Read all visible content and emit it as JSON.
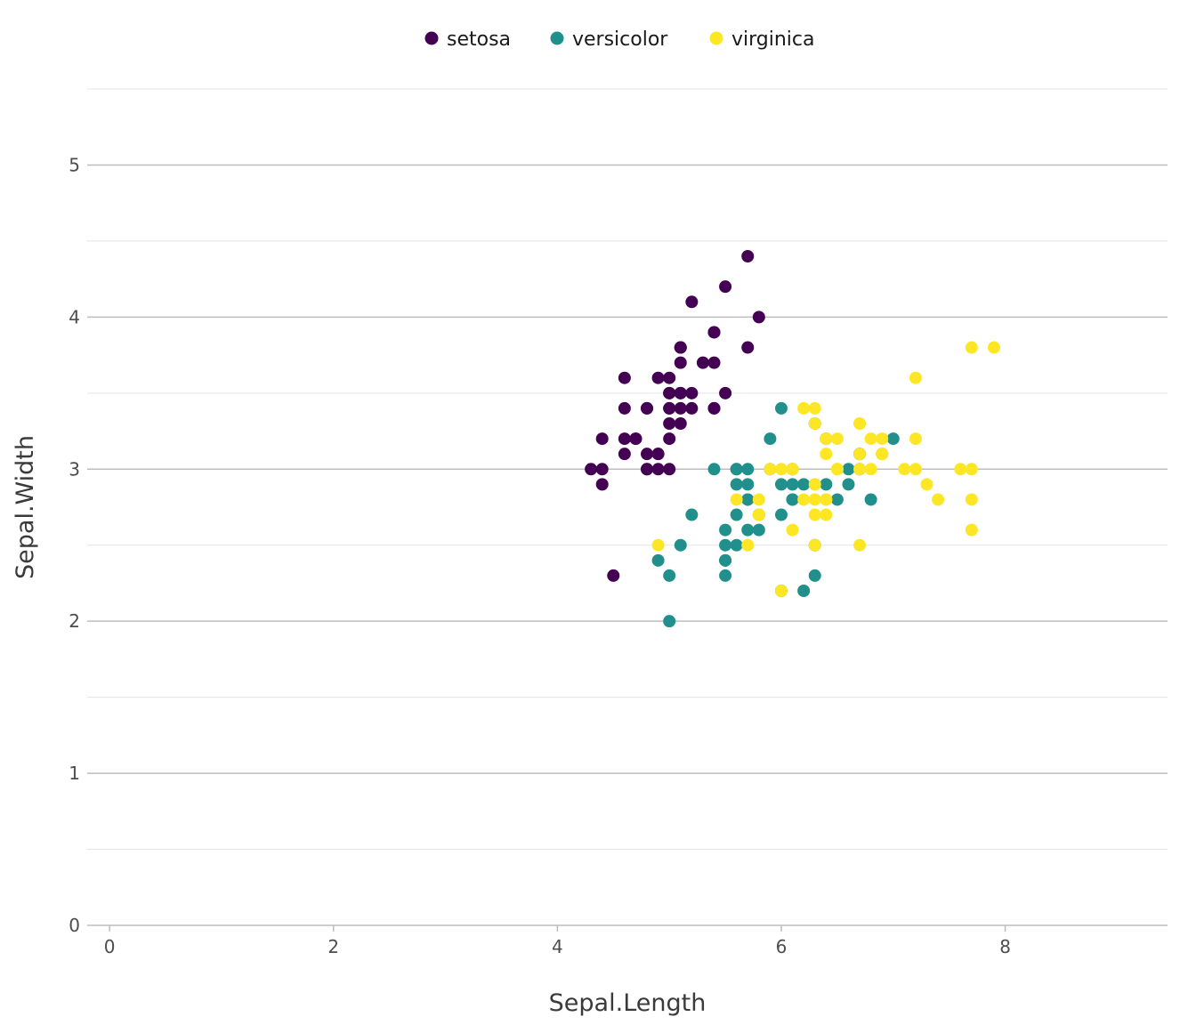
{
  "chart_data": {
    "type": "scatter",
    "title": "",
    "xlabel": "Sepal.Length",
    "ylabel": "Sepal.Width",
    "xlim": [
      -0.2,
      9.45
    ],
    "ylim": [
      0,
      5.5
    ],
    "x_ticks": [
      0,
      2,
      4,
      6,
      8
    ],
    "y_ticks": [
      0,
      1,
      2,
      3,
      4,
      5
    ],
    "x_tick_labels": [
      "0",
      "2",
      "4",
      "6",
      "8"
    ],
    "y_tick_labels": [
      "0",
      "1",
      "2",
      "3",
      "4",
      "5"
    ],
    "grid": true,
    "legend_position": "top",
    "series": [
      {
        "name": "setosa",
        "color": "#440154",
        "points": [
          [
            5.1,
            3.5
          ],
          [
            4.9,
            3.0
          ],
          [
            4.7,
            3.2
          ],
          [
            4.6,
            3.1
          ],
          [
            5.0,
            3.6
          ],
          [
            5.4,
            3.9
          ],
          [
            4.6,
            3.4
          ],
          [
            5.0,
            3.4
          ],
          [
            4.4,
            2.9
          ],
          [
            4.9,
            3.1
          ],
          [
            5.4,
            3.7
          ],
          [
            4.8,
            3.4
          ],
          [
            4.8,
            3.0
          ],
          [
            4.3,
            3.0
          ],
          [
            5.8,
            4.0
          ],
          [
            5.7,
            4.4
          ],
          [
            5.4,
            3.9
          ],
          [
            5.1,
            3.5
          ],
          [
            5.7,
            3.8
          ],
          [
            5.1,
            3.8
          ],
          [
            5.4,
            3.4
          ],
          [
            5.1,
            3.7
          ],
          [
            4.6,
            3.6
          ],
          [
            5.1,
            3.3
          ],
          [
            4.8,
            3.4
          ],
          [
            5.0,
            3.0
          ],
          [
            5.0,
            3.4
          ],
          [
            5.2,
            3.5
          ],
          [
            5.2,
            3.4
          ],
          [
            4.7,
            3.2
          ],
          [
            4.8,
            3.1
          ],
          [
            5.4,
            3.4
          ],
          [
            5.2,
            4.1
          ],
          [
            5.5,
            4.2
          ],
          [
            4.9,
            3.1
          ],
          [
            5.0,
            3.2
          ],
          [
            5.5,
            3.5
          ],
          [
            4.9,
            3.6
          ],
          [
            4.4,
            3.0
          ],
          [
            5.1,
            3.4
          ],
          [
            5.0,
            3.5
          ],
          [
            4.5,
            2.3
          ],
          [
            4.4,
            3.2
          ],
          [
            5.0,
            3.5
          ],
          [
            5.1,
            3.8
          ],
          [
            4.8,
            3.0
          ],
          [
            5.1,
            3.8
          ],
          [
            4.6,
            3.2
          ],
          [
            5.3,
            3.7
          ],
          [
            5.0,
            3.3
          ]
        ]
      },
      {
        "name": "versicolor",
        "color": "#21908C",
        "points": [
          [
            7.0,
            3.2
          ],
          [
            6.4,
            3.2
          ],
          [
            6.9,
            3.1
          ],
          [
            5.5,
            2.3
          ],
          [
            6.5,
            2.8
          ],
          [
            5.7,
            2.8
          ],
          [
            6.3,
            3.3
          ],
          [
            4.9,
            2.4
          ],
          [
            6.6,
            2.9
          ],
          [
            5.2,
            2.7
          ],
          [
            5.0,
            2.0
          ],
          [
            5.9,
            3.0
          ],
          [
            6.0,
            2.2
          ],
          [
            6.1,
            2.9
          ],
          [
            5.6,
            2.9
          ],
          [
            6.7,
            3.1
          ],
          [
            5.6,
            3.0
          ],
          [
            5.8,
            2.7
          ],
          [
            6.2,
            2.2
          ],
          [
            5.6,
            2.5
          ],
          [
            5.9,
            3.2
          ],
          [
            6.1,
            2.8
          ],
          [
            6.3,
            2.5
          ],
          [
            6.1,
            2.8
          ],
          [
            6.4,
            2.9
          ],
          [
            6.6,
            3.0
          ],
          [
            6.8,
            2.8
          ],
          [
            6.7,
            3.0
          ],
          [
            6.0,
            2.9
          ],
          [
            5.7,
            2.6
          ],
          [
            5.5,
            2.4
          ],
          [
            5.5,
            2.4
          ],
          [
            5.8,
            2.7
          ],
          [
            6.0,
            2.7
          ],
          [
            5.4,
            3.0
          ],
          [
            6.0,
            3.4
          ],
          [
            6.7,
            3.1
          ],
          [
            6.3,
            2.3
          ],
          [
            5.6,
            3.0
          ],
          [
            5.5,
            2.5
          ],
          [
            5.5,
            2.6
          ],
          [
            6.1,
            3.0
          ],
          [
            5.8,
            2.6
          ],
          [
            5.0,
            2.3
          ],
          [
            5.6,
            2.7
          ],
          [
            5.7,
            3.0
          ],
          [
            5.7,
            2.9
          ],
          [
            6.2,
            2.9
          ],
          [
            5.1,
            2.5
          ],
          [
            5.7,
            2.8
          ]
        ]
      },
      {
        "name": "virginica",
        "color": "#FDE725",
        "points": [
          [
            6.3,
            3.3
          ],
          [
            5.8,
            2.7
          ],
          [
            7.1,
            3.0
          ],
          [
            6.3,
            2.9
          ],
          [
            6.5,
            3.0
          ],
          [
            7.6,
            3.0
          ],
          [
            4.9,
            2.5
          ],
          [
            7.3,
            2.9
          ],
          [
            6.7,
            2.5
          ],
          [
            7.2,
            3.6
          ],
          [
            6.5,
            3.2
          ],
          [
            6.4,
            2.7
          ],
          [
            6.8,
            3.0
          ],
          [
            5.7,
            2.5
          ],
          [
            5.8,
            2.8
          ],
          [
            6.4,
            3.2
          ],
          [
            6.5,
            3.0
          ],
          [
            7.7,
            3.8
          ],
          [
            7.7,
            2.6
          ],
          [
            6.0,
            2.2
          ],
          [
            6.9,
            3.2
          ],
          [
            5.6,
            2.8
          ],
          [
            7.7,
            2.8
          ],
          [
            6.3,
            2.7
          ],
          [
            6.7,
            3.3
          ],
          [
            7.2,
            3.2
          ],
          [
            6.2,
            2.8
          ],
          [
            6.1,
            3.0
          ],
          [
            6.4,
            2.8
          ],
          [
            7.2,
            3.0
          ],
          [
            7.4,
            2.8
          ],
          [
            7.9,
            3.8
          ],
          [
            6.4,
            2.8
          ],
          [
            6.3,
            2.8
          ],
          [
            6.1,
            2.6
          ],
          [
            7.7,
            3.0
          ],
          [
            6.3,
            3.4
          ],
          [
            6.4,
            3.1
          ],
          [
            6.0,
            3.0
          ],
          [
            6.9,
            3.1
          ],
          [
            6.7,
            3.1
          ],
          [
            6.9,
            3.1
          ],
          [
            5.8,
            2.7
          ],
          [
            6.8,
            3.2
          ],
          [
            6.7,
            3.3
          ],
          [
            6.7,
            3.0
          ],
          [
            6.3,
            2.5
          ],
          [
            6.5,
            3.0
          ],
          [
            6.2,
            3.4
          ],
          [
            5.9,
            3.0
          ]
        ]
      }
    ]
  }
}
